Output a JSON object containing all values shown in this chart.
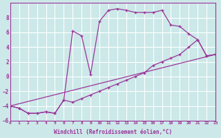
{
  "xlabel": "Windchill (Refroidissement éolien,°C)",
  "bg_color": "#cce8e8",
  "line_color": "#993399",
  "grid_color": "#ffffff",
  "xlim": [
    0,
    23
  ],
  "ylim": [
    -6,
    10
  ],
  "xticks": [
    0,
    1,
    2,
    3,
    4,
    5,
    6,
    7,
    8,
    9,
    10,
    11,
    12,
    13,
    14,
    15,
    16,
    17,
    18,
    19,
    20,
    21,
    22,
    23
  ],
  "yticks": [
    -6,
    -4,
    -2,
    0,
    2,
    4,
    6,
    8
  ],
  "line1_x": [
    0,
    1,
    2,
    3,
    4,
    5,
    6,
    7,
    8,
    9,
    10,
    11,
    12,
    13,
    14,
    15,
    16,
    17,
    18,
    19,
    20,
    21,
    22,
    23
  ],
  "line1_y": [
    -4,
    -4.3,
    -5,
    -5,
    -4.8,
    -5,
    -3.2,
    6.2,
    5.5,
    0.3,
    7.5,
    9,
    9.2,
    9,
    8.7,
    8.7,
    8.7,
    9,
    7,
    6.8,
    5.8,
    5,
    2.8,
    3
  ],
  "line2_x": [
    0,
    1,
    2,
    3,
    4,
    5,
    6,
    7,
    8,
    9,
    10,
    11,
    12,
    13,
    14,
    15,
    16,
    17,
    18,
    19,
    20,
    21,
    22,
    23
  ],
  "line2_y": [
    -4,
    -4.3,
    -5,
    -5,
    -4.8,
    -5,
    -3.2,
    -3.5,
    -3,
    -2.5,
    -2,
    -1.5,
    -1,
    -0.5,
    0,
    0.5,
    1.5,
    2,
    2.5,
    3,
    4,
    5,
    2.8,
    3
  ],
  "line3_x": [
    0,
    23
  ],
  "line3_y": [
    -4,
    3
  ]
}
